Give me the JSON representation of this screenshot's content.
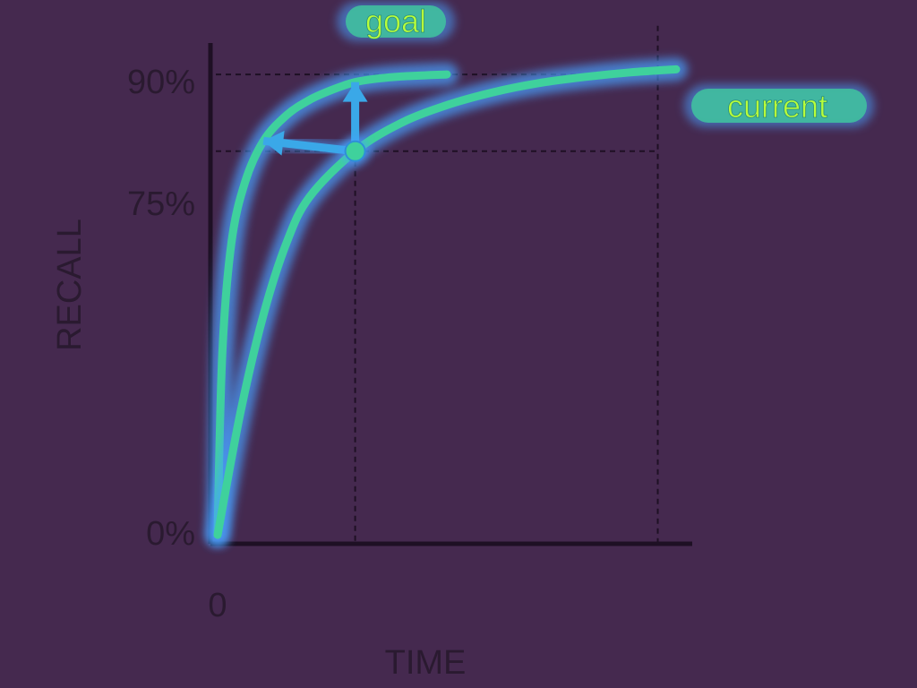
{
  "chart_data": {
    "type": "line",
    "xlabel": "TIME",
    "ylabel": "RECALL",
    "x_ticks": [
      "0"
    ],
    "y_ticks": [
      {
        "label": "0%",
        "value": 0
      },
      {
        "label": "75%",
        "value": 75
      },
      {
        "label": "90%",
        "value": 90
      }
    ],
    "xlim": [
      0,
      100
    ],
    "ylim": [
      0,
      100
    ],
    "grid": false,
    "series": [
      {
        "name": "goal",
        "x": [
          0,
          1,
          3,
          6,
          10,
          15,
          20,
          25,
          30,
          35,
          40,
          50
        ],
        "y": [
          0,
          35,
          57,
          69,
          77,
          82,
          85,
          87,
          88.5,
          89.2,
          89.6,
          90
        ]
      },
      {
        "name": "current",
        "x": [
          0,
          5,
          10,
          15,
          20,
          30,
          40,
          50,
          60,
          70,
          80,
          90,
          100
        ],
        "y": [
          0,
          24,
          43,
          57,
          66,
          75,
          80.5,
          84,
          86.5,
          88.3,
          89.5,
          90.4,
          91
        ]
      }
    ],
    "reference_lines": [
      {
        "axis": "y",
        "value": 90
      },
      {
        "axis": "y",
        "value": 75
      },
      {
        "axis": "x",
        "value": 30
      },
      {
        "axis": "x",
        "value": 96
      }
    ],
    "markers": [
      {
        "x": 30,
        "y": 75
      }
    ],
    "arrows": [
      {
        "from": [
          30,
          75
        ],
        "to": [
          30,
          88.5
        ]
      },
      {
        "from": [
          30,
          75
        ],
        "to": [
          10,
          77
        ]
      }
    ],
    "colors": {
      "background": "#45294f",
      "axis": "#1e1024",
      "text": "#2a1a30",
      "line": "#3fd19c",
      "glow": "#4aa0ff",
      "label_text": "#b9ff3a"
    }
  }
}
